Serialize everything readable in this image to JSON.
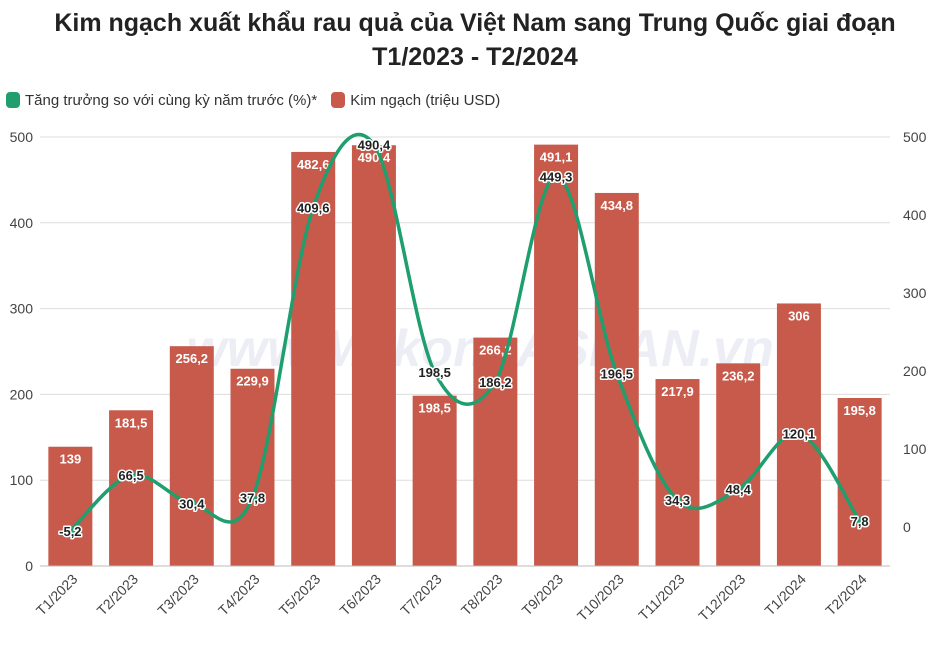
{
  "title": {
    "line1": "Kim ngạch xuất khẩu rau quả của Việt Nam sang Trung Quốc giai đoạn",
    "line2": "T1/2023 - T2/2024"
  },
  "legend": {
    "growth": "Tăng trưởng so với cùng kỳ năm trước (%)*",
    "value": "Kim ngạch (triệu USD)"
  },
  "watermark": "www.MekongASEAN.vn",
  "colors": {
    "bar": "#c85a4b",
    "line": "#1f9e6e",
    "grid": "#dddddd"
  },
  "chart_data": {
    "type": "bar",
    "categories": [
      "T1/2023",
      "T2/2023",
      "T3/2023",
      "T4/2023",
      "T5/2023",
      "T6/2023",
      "T7/2023",
      "T8/2023",
      "T9/2023",
      "T10/2023",
      "T11/2023",
      "T12/2023",
      "T1/2024",
      "T2/2024"
    ],
    "series": [
      {
        "name": "Kim ngạch (triệu USD)",
        "type": "bar",
        "axis": "left",
        "values": [
          139,
          181.5,
          256.2,
          229.9,
          482.6,
          490.4,
          198.5,
          266.2,
          491.1,
          434.8,
          217.9,
          236.2,
          306,
          195.8
        ],
        "labels": [
          "139",
          "181,5",
          "256,2",
          "229,9",
          "482,6",
          "490,4",
          "198,5",
          "266,2",
          "491,1",
          "434,8",
          "217,9",
          "236,2",
          "306",
          "195,8"
        ]
      },
      {
        "name": "Tăng trưởng so với cùng kỳ năm trước (%)*",
        "type": "line",
        "axis": "right",
        "values": [
          -5.2,
          66.5,
          30.4,
          37.8,
          409.6,
          490.4,
          198.5,
          186.2,
          449.3,
          196.5,
          34.3,
          48.4,
          120.1,
          7.8
        ],
        "labels": [
          "-5,2",
          "66,5",
          "30,4",
          "37,8",
          "409,6",
          "490,4",
          "198,5",
          "186,2",
          "449,3",
          "196,5",
          "34,3",
          "48,4",
          "120,1",
          "7,8"
        ]
      }
    ],
    "y_left": {
      "range": [
        0,
        500
      ],
      "ticks": [
        "0",
        "100",
        "200",
        "300",
        "400",
        "500"
      ]
    },
    "y_right": {
      "range": [
        -50,
        500
      ],
      "ticks": [
        "0",
        "100",
        "200",
        "300",
        "400",
        "500"
      ]
    },
    "grid": true,
    "legend_position": "top-left"
  }
}
